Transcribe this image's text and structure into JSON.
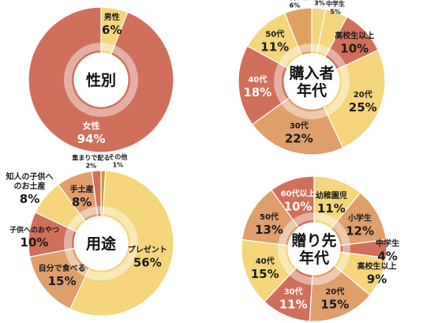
{
  "colors": {
    "yellow": "#F5D67C",
    "light": "#ECAE68",
    "orange": "#DFA162",
    "red": "#D0705A",
    "deepred": "#C65D4B",
    "gold": "#C89A32",
    "tan": "#DE9F6B",
    "label_dark": "#1a1a1a",
    "label_light": "#ffffff"
  },
  "chart_data": [
    {
      "id": "gender",
      "type": "pie",
      "title": "性別",
      "slices": [
        {
          "label": "男性",
          "value": 6,
          "display": "6%",
          "color": "#F5D67C"
        },
        {
          "label": "女性",
          "value": 94,
          "display": "94%",
          "color": "#D0705A"
        }
      ]
    },
    {
      "id": "buyer-age",
      "type": "pie",
      "title": "購入者\n年代",
      "slices": [
        {
          "label": "小学生",
          "value": 3,
          "display": "3%",
          "color": "#F5D67C"
        },
        {
          "label": "中学生",
          "value": 5,
          "display": "5%",
          "color": "#F5D67C"
        },
        {
          "label": "高校生以上",
          "value": 10,
          "display": "10%",
          "color": "#D0705A"
        },
        {
          "label": "20代",
          "value": 25,
          "display": "25%",
          "color": "#F5D67C"
        },
        {
          "label": "30代",
          "value": 22,
          "display": "22%",
          "color": "#DE9F6B"
        },
        {
          "label": "40代",
          "value": 18,
          "display": "18%",
          "color": "#D0705A"
        },
        {
          "label": "50代",
          "value": 11,
          "display": "11%",
          "color": "#F5D67C"
        },
        {
          "label": "60代以上",
          "value": 6,
          "display": "6%",
          "color": "#DFA162"
        }
      ]
    },
    {
      "id": "purpose",
      "type": "pie",
      "title": "用途",
      "slices": [
        {
          "label": "その他",
          "value": 1,
          "display": "1%",
          "color": "#C89A32"
        },
        {
          "label": "プレゼント",
          "value": 56,
          "display": "56%",
          "color": "#F5D67C"
        },
        {
          "label": "自分で食べる",
          "value": 15,
          "display": "15%",
          "color": "#DE9F6B"
        },
        {
          "label": "子供へのおやつ",
          "value": 10,
          "display": "10%",
          "color": "#D0705A"
        },
        {
          "label": "知人の子供へ\nのお土産",
          "value": 8,
          "display": "8%",
          "color": "#F5D67C"
        },
        {
          "label": "手土産",
          "value": 8,
          "display": "8%",
          "color": "#DE9F6B"
        },
        {
          "label": "集まりで配る",
          "value": 2,
          "display": "2%",
          "color": "#D0705A"
        }
      ]
    },
    {
      "id": "recipient-age",
      "type": "pie",
      "title": "贈り先\n年代",
      "slices": [
        {
          "label": "幼稚園児",
          "value": 11,
          "display": "11%",
          "color": "#F5D67C"
        },
        {
          "label": "小学生",
          "value": 12,
          "display": "12%",
          "color": "#DE9F6B"
        },
        {
          "label": "中学生",
          "value": 4,
          "display": "4%",
          "color": "#D0705A"
        },
        {
          "label": "高校生以上",
          "value": 9,
          "display": "9%",
          "color": "#F5D67C"
        },
        {
          "label": "20代",
          "value": 15,
          "display": "15%",
          "color": "#DE9F6B"
        },
        {
          "label": "30代",
          "value": 11,
          "display": "11%",
          "color": "#D0705A"
        },
        {
          "label": "40代",
          "value": 15,
          "display": "15%",
          "color": "#F5D67C"
        },
        {
          "label": "50代",
          "value": 13,
          "display": "13%",
          "color": "#DE9F6B"
        },
        {
          "label": "60代以上",
          "value": 10,
          "display": "10%",
          "color": "#D0705A"
        }
      ]
    }
  ]
}
